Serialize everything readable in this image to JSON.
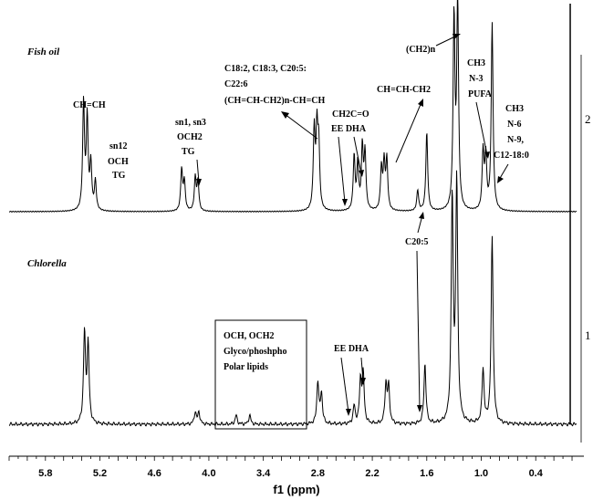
{
  "chart_data": {
    "type": "line",
    "title": "",
    "xlabel": "f1 (ppm)",
    "ylabel": "",
    "xlim": [
      6.2,
      -0.05
    ],
    "x_reversed": true,
    "x_ticks": [
      "5.8",
      "5.2",
      "4.6",
      "4.0",
      "3.4",
      "2.8",
      "2.2",
      "1.6",
      "1.0",
      "0.4"
    ],
    "grid": false,
    "series": [
      {
        "name": "Fish oil",
        "index_label": "2",
        "peaks": [
          {
            "x": 5.38,
            "h": 0.52
          },
          {
            "x": 5.34,
            "h": 0.44
          },
          {
            "x": 5.3,
            "h": 0.22
          },
          {
            "x": 5.25,
            "h": 0.14
          },
          {
            "x": 4.3,
            "h": 0.2
          },
          {
            "x": 4.27,
            "h": 0.14
          },
          {
            "x": 4.15,
            "h": 0.16
          },
          {
            "x": 4.12,
            "h": 0.14
          },
          {
            "x": 2.84,
            "h": 0.38
          },
          {
            "x": 2.81,
            "h": 0.36
          },
          {
            "x": 2.79,
            "h": 0.3
          },
          {
            "x": 2.4,
            "h": 0.26
          },
          {
            "x": 2.36,
            "h": 0.22
          },
          {
            "x": 2.31,
            "h": 0.3
          },
          {
            "x": 2.28,
            "h": 0.27
          },
          {
            "x": 2.1,
            "h": 0.2
          },
          {
            "x": 2.07,
            "h": 0.22
          },
          {
            "x": 2.04,
            "h": 0.24
          },
          {
            "x": 1.7,
            "h": 0.1
          },
          {
            "x": 1.6,
            "h": 0.38
          },
          {
            "x": 1.3,
            "h": 0.92
          },
          {
            "x": 1.26,
            "h": 1.0
          },
          {
            "x": 0.98,
            "h": 0.28
          },
          {
            "x": 0.95,
            "h": 0.25
          },
          {
            "x": 0.88,
            "h": 0.9
          }
        ]
      },
      {
        "name": "Chlorella",
        "index_label": "1",
        "peaks": [
          {
            "x": 5.37,
            "h": 0.3
          },
          {
            "x": 5.33,
            "h": 0.26
          },
          {
            "x": 4.15,
            "h": 0.04
          },
          {
            "x": 4.11,
            "h": 0.04
          },
          {
            "x": 3.7,
            "h": 0.03
          },
          {
            "x": 3.55,
            "h": 0.03
          },
          {
            "x": 2.8,
            "h": 0.14
          },
          {
            "x": 2.76,
            "h": 0.1
          },
          {
            "x": 2.4,
            "h": 0.06
          },
          {
            "x": 2.33,
            "h": 0.14
          },
          {
            "x": 2.3,
            "h": 0.16
          },
          {
            "x": 2.05,
            "h": 0.13
          },
          {
            "x": 2.02,
            "h": 0.12
          },
          {
            "x": 1.62,
            "h": 0.2
          },
          {
            "x": 1.32,
            "h": 0.74
          },
          {
            "x": 1.27,
            "h": 0.8
          },
          {
            "x": 0.98,
            "h": 0.18
          },
          {
            "x": 0.88,
            "h": 0.62
          }
        ]
      }
    ],
    "annotations": {
      "fish_oil": {
        "ch_ch": "CH=CH",
        "sn12_1": "sn12",
        "sn12_2": "OCH",
        "sn12_3": "TG",
        "sn13_1": "sn1, sn3",
        "sn13_2": "OCH2",
        "sn13_3": "TG",
        "fa_1": "C18:2, C18:3, C20:5:",
        "fa_2": "C22:6",
        "fa_3": "(CH=CH-CH2)n-CH=CH",
        "ch2co": "CH2C=O",
        "ee_dha": "EE  DHA",
        "ch_ch_ch2": "CH=CH-CH2",
        "ch2n": "(CH2)n",
        "ch3_n3_1": "CH3",
        "ch3_n3_2": "N-3",
        "ch3_n3_3": "PUFA",
        "ch3_n6_1": "CH3",
        "ch3_n6_2": "N-6",
        "ch3_n6_3": "N-9,",
        "ch3_n6_4": "C12-18:0"
      },
      "chlorella": {
        "box_1": "OCH, OCH2",
        "box_2": "Glyco/phoshpho",
        "box_3": "Polar lipids",
        "ee_dha": "EE  DHA",
        "c20_5": "C20:5"
      }
    }
  }
}
